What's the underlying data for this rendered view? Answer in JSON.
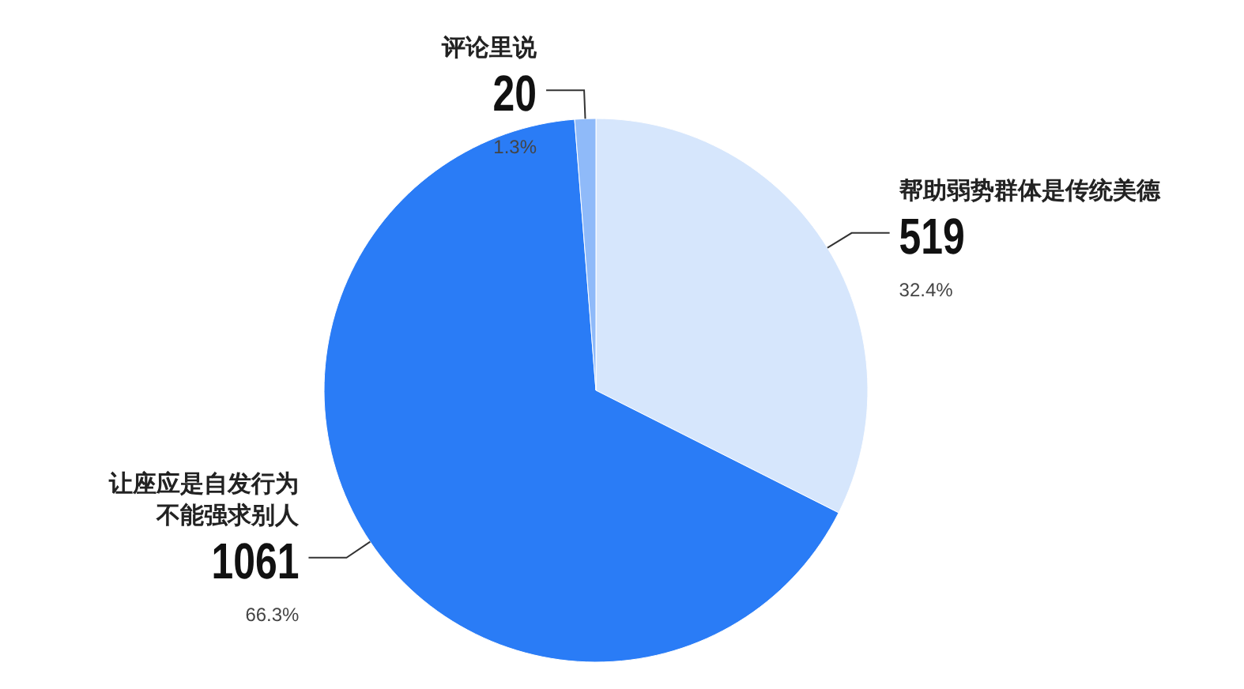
{
  "chart_data": {
    "type": "pie",
    "categories": [
      "帮助弱势群体是传统美德",
      "让座应是自发行为不能强求别人",
      "评论里说"
    ],
    "values": [
      519,
      1061,
      20
    ],
    "colors": [
      "#d6e6fc",
      "#2a7cf6",
      "#8fbaf9"
    ],
    "data_labels": true,
    "annotations": [
      "32.4%",
      "66.3%",
      "1.3%"
    ]
  }
}
